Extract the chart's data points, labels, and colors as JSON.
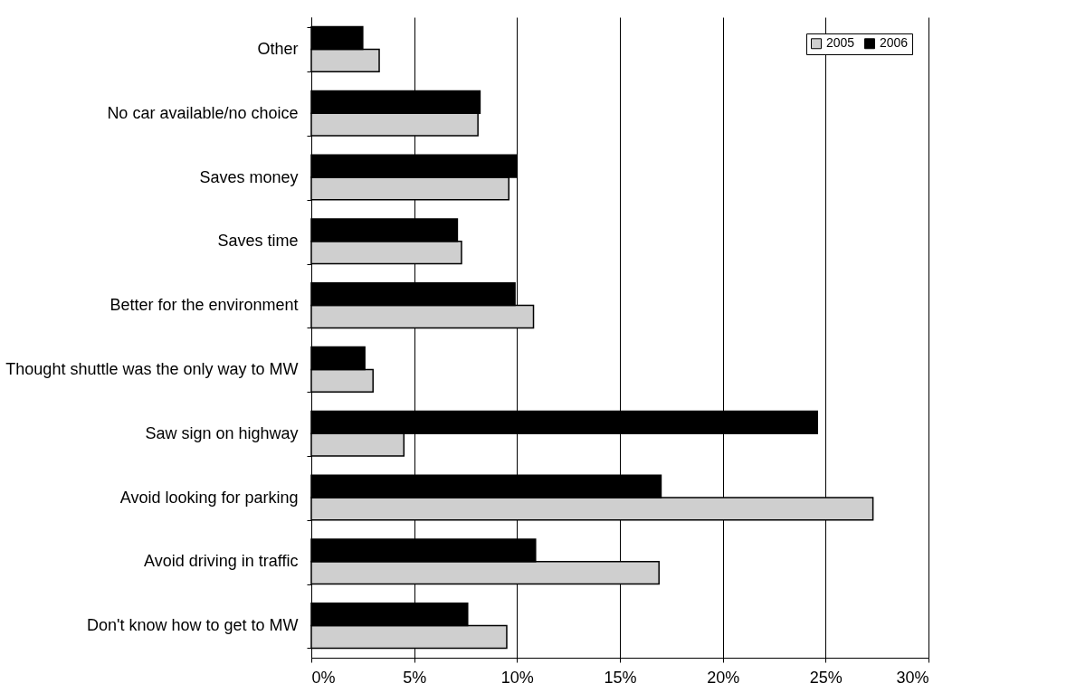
{
  "chart_data": {
    "type": "bar",
    "orientation": "horizontal",
    "categories": [
      "Other",
      "No car available/no choice",
      "Saves money",
      "Saves time",
      "Better for the environment",
      "Thought shuttle was the only way to MW",
      "Saw sign on highway",
      "Avoid looking for parking",
      "Avoid driving in traffic",
      "Don't know how to get to MW"
    ],
    "series": [
      {
        "name": "2005",
        "color": "#cfcfcf",
        "values": [
          3.3,
          8.1,
          9.6,
          7.3,
          10.8,
          3.0,
          4.5,
          27.3,
          16.9,
          9.5
        ]
      },
      {
        "name": "2006",
        "color": "#000000",
        "values": [
          2.5,
          8.2,
          10.0,
          7.1,
          9.9,
          2.6,
          24.6,
          17.0,
          10.9,
          7.6
        ]
      }
    ],
    "xlim": [
      0,
      30
    ],
    "xticks": [
      {
        "value": 0,
        "label": "0%"
      },
      {
        "value": 5,
        "label": "5%"
      },
      {
        "value": 10,
        "label": "10%"
      },
      {
        "value": 15,
        "label": "15%"
      },
      {
        "value": 20,
        "label": "20%"
      },
      {
        "value": 25,
        "label": "25%"
      },
      {
        "value": 30,
        "label": "30%"
      }
    ],
    "grid": "x",
    "legend": "top right"
  }
}
